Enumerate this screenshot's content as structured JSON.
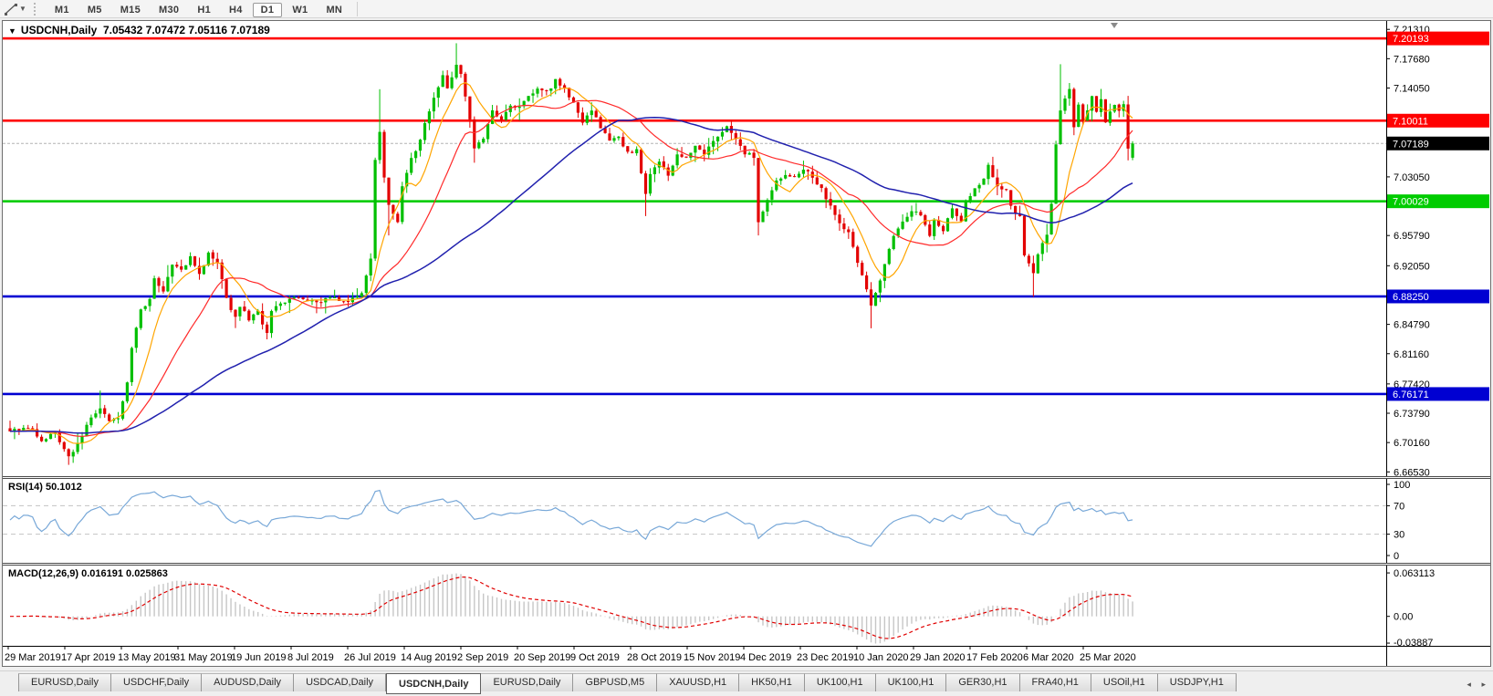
{
  "toolbar": {
    "timeframes": [
      "M1",
      "M5",
      "M15",
      "M30",
      "H1",
      "H4",
      "D1",
      "W1",
      "MN"
    ],
    "active_timeframe": "D1"
  },
  "chart_header": {
    "collapse_arrow": "▼",
    "title": "USDCNH,Daily",
    "ohlc_text": "7.05432 7.07472 7.05116 7.07189"
  },
  "chart_data": {
    "type": "candlestick",
    "symbol": "USDCNH",
    "timeframe": "Daily",
    "last_bar": {
      "open": 7.05432,
      "high": 7.07472,
      "low": 7.05116,
      "close": 7.07189
    },
    "ylim": [
      6.66,
      7.2235
    ],
    "price_axis_ticks": [
      "7.21310",
      "7.17680",
      "7.14050",
      "7.03050",
      "6.95790",
      "6.92050",
      "6.84790",
      "6.81160",
      "6.77420",
      "6.73790",
      "6.70160",
      "6.66530"
    ],
    "price_axis_tick_values": [
      7.2131,
      7.1768,
      7.1405,
      7.0305,
      6.9579,
      6.9205,
      6.8479,
      6.8116,
      6.7742,
      6.7379,
      6.7016,
      6.6653
    ],
    "hlines": [
      {
        "value": 7.20193,
        "label": "7.20193",
        "color": "#ff0000"
      },
      {
        "value": 7.10011,
        "label": "7.10011",
        "color": "#ff0000"
      },
      {
        "value": 7.00029,
        "label": "7.00029",
        "color": "#00cc00"
      },
      {
        "value": 6.8825,
        "label": "6.88250",
        "color": "#0000d2"
      },
      {
        "value": 6.76171,
        "label": "6.76171",
        "color": "#0000d2"
      }
    ],
    "current_price": {
      "value": 7.07189,
      "label": "7.07189"
    },
    "x_axis_dates": [
      "29 Mar 2019",
      "17 Apr 2019",
      "13 May 2019",
      "31 May 2019",
      "19 Jun 2019",
      "8 Jul 2019",
      "26 Jul 2019",
      "14 Aug 2019",
      "2 Sep 2019",
      "20 Sep 2019",
      "9 Oct 2019",
      "28 Oct 2019",
      "15 Nov 2019",
      "4 Dec 2019",
      "23 Dec 2019",
      "10 Jan 2020",
      "29 Jan 2020",
      "17 Feb 2020",
      "6 Mar 2020",
      "25 Mar 2020"
    ],
    "candle_count": 250,
    "close_anchors": [
      [
        0,
        6.715
      ],
      [
        4,
        6.722
      ],
      [
        7,
        6.705
      ],
      [
        10,
        6.715
      ],
      [
        13,
        6.683
      ],
      [
        15,
        6.7
      ],
      [
        18,
        6.735
      ],
      [
        20,
        6.745
      ],
      [
        22,
        6.728
      ],
      [
        24,
        6.733
      ],
      [
        26,
        6.775
      ],
      [
        27,
        6.82
      ],
      [
        29,
        6.865
      ],
      [
        31,
        6.88
      ],
      [
        32,
        6.905
      ],
      [
        34,
        6.89
      ],
      [
        36,
        6.92
      ],
      [
        38,
        6.915
      ],
      [
        40,
        6.93
      ],
      [
        42,
        6.91
      ],
      [
        44,
        6.935
      ],
      [
        46,
        6.925
      ],
      [
        48,
        6.88
      ],
      [
        50,
        6.855
      ],
      [
        51,
        6.87
      ],
      [
        53,
        6.855
      ],
      [
        55,
        6.865
      ],
      [
        57,
        6.835
      ],
      [
        58,
        6.865
      ],
      [
        60,
        6.875
      ],
      [
        63,
        6.88
      ],
      [
        67,
        6.875
      ],
      [
        71,
        6.88
      ],
      [
        75,
        6.878
      ],
      [
        78,
        6.885
      ],
      [
        80,
        6.93
      ],
      [
        81,
        7.05
      ],
      [
        82,
        7.085
      ],
      [
        83,
        7.03
      ],
      [
        84,
        6.995
      ],
      [
        86,
        6.975
      ],
      [
        87,
        7.02
      ],
      [
        89,
        7.055
      ],
      [
        90,
        7.06
      ],
      [
        92,
        7.095
      ],
      [
        94,
        7.13
      ],
      [
        96,
        7.155
      ],
      [
        97,
        7.14
      ],
      [
        99,
        7.17
      ],
      [
        100,
        7.16
      ],
      [
        102,
        7.1
      ],
      [
        103,
        7.065
      ],
      [
        105,
        7.08
      ],
      [
        107,
        7.115
      ],
      [
        109,
        7.1
      ],
      [
        111,
        7.12
      ],
      [
        113,
        7.115
      ],
      [
        115,
        7.13
      ],
      [
        117,
        7.14
      ],
      [
        119,
        7.135
      ],
      [
        121,
        7.15
      ],
      [
        123,
        7.14
      ],
      [
        125,
        7.12
      ],
      [
        127,
        7.1
      ],
      [
        129,
        7.115
      ],
      [
        131,
        7.09
      ],
      [
        133,
        7.075
      ],
      [
        135,
        7.08
      ],
      [
        137,
        7.06
      ],
      [
        139,
        7.065
      ],
      [
        141,
        7.01
      ],
      [
        142,
        7.035
      ],
      [
        144,
        7.05
      ],
      [
        146,
        7.03
      ],
      [
        148,
        7.06
      ],
      [
        150,
        7.055
      ],
      [
        152,
        7.07
      ],
      [
        154,
        7.06
      ],
      [
        156,
        7.075
      ],
      [
        158,
        7.085
      ],
      [
        159,
        7.095
      ],
      [
        161,
        7.075
      ],
      [
        163,
        7.06
      ],
      [
        165,
        7.055
      ],
      [
        166,
        6.975
      ],
      [
        168,
        7.0
      ],
      [
        170,
        7.025
      ],
      [
        172,
        7.035
      ],
      [
        174,
        7.03
      ],
      [
        176,
        7.04
      ],
      [
        178,
        7.03
      ],
      [
        180,
        7.015
      ],
      [
        182,
        6.995
      ],
      [
        184,
        6.975
      ],
      [
        186,
        6.96
      ],
      [
        188,
        6.925
      ],
      [
        190,
        6.89
      ],
      [
        191,
        6.87
      ],
      [
        193,
        6.9
      ],
      [
        194,
        6.925
      ],
      [
        196,
        6.955
      ],
      [
        198,
        6.975
      ],
      [
        200,
        6.99
      ],
      [
        202,
        6.985
      ],
      [
        204,
        6.96
      ],
      [
        205,
        6.975
      ],
      [
        207,
        6.965
      ],
      [
        209,
        6.99
      ],
      [
        211,
        6.975
      ],
      [
        212,
        7.0
      ],
      [
        214,
        7.015
      ],
      [
        216,
        7.03
      ],
      [
        217,
        7.045
      ],
      [
        219,
        7.02
      ],
      [
        221,
        7.015
      ],
      [
        222,
        6.995
      ],
      [
        224,
        6.98
      ],
      [
        225,
        6.935
      ],
      [
        227,
        6.91
      ],
      [
        228,
        6.935
      ],
      [
        230,
        6.96
      ],
      [
        231,
        6.995
      ],
      [
        232,
        7.07
      ],
      [
        233,
        7.115
      ],
      [
        235,
        7.14
      ],
      [
        236,
        7.09
      ],
      [
        237,
        7.12
      ],
      [
        238,
        7.1
      ],
      [
        240,
        7.13
      ],
      [
        241,
        7.11
      ],
      [
        242,
        7.125
      ],
      [
        243,
        7.1
      ],
      [
        245,
        7.12
      ],
      [
        246,
        7.11
      ],
      [
        247,
        7.12
      ],
      [
        248,
        7.065
      ],
      [
        249,
        7.07189
      ]
    ],
    "wick_overrides": [
      [
        13,
        "l",
        6.674
      ],
      [
        20,
        "h",
        6.766
      ],
      [
        82,
        "h",
        7.139
      ],
      [
        84,
        "l",
        6.958
      ],
      [
        99,
        "h",
        7.196
      ],
      [
        103,
        "l",
        7.048
      ],
      [
        141,
        "l",
        6.982
      ],
      [
        166,
        "l",
        6.958
      ],
      [
        191,
        "l",
        6.843
      ],
      [
        227,
        "l",
        6.882
      ],
      [
        233,
        "h",
        7.17
      ],
      [
        248,
        "l",
        7.051
      ]
    ],
    "moving_averages": [
      {
        "name": "fast",
        "period": 8,
        "color": "#ffa500"
      },
      {
        "name": "mid",
        "period": 21,
        "color": "#ff2a2a"
      },
      {
        "name": "slow",
        "period": 55,
        "color": "#2121ae"
      }
    ],
    "indicators": {
      "rsi": {
        "label": "RSI(14) 50.1012",
        "period": 14,
        "current": 50.1012,
        "range": [
          0,
          100
        ],
        "dashed_levels": [
          70,
          30
        ],
        "axis_labels": [
          "100",
          "70",
          "30",
          "0"
        ],
        "axis_values": [
          100,
          70,
          30,
          0
        ]
      },
      "macd": {
        "label": "MACD(12,26,9) 0.016191 0.025863",
        "fast": 12,
        "slow": 26,
        "signal": 9,
        "current_macd": 0.016191,
        "current_signal": 0.025863,
        "range": [
          -0.0428,
          0.0738
        ],
        "axis_labels": [
          "0.063113",
          "0.00",
          "-0.03887"
        ],
        "axis_values": [
          0.063113,
          0,
          -0.03887
        ]
      }
    },
    "colors": {
      "up": "#00bf00",
      "down": "#e30000",
      "rsi_line": "#78a8d8",
      "level_dash": "#c2c2c2",
      "macd_histogram": "#c6c6c6",
      "macd_signal": "#e00000",
      "current_price_line": "#b4b4b4",
      "current_price_box": "#000000",
      "axis_text": "#000000"
    }
  },
  "tabs": {
    "items": [
      {
        "label": "EURUSD,Daily",
        "active": false
      },
      {
        "label": "USDCHF,Daily",
        "active": false
      },
      {
        "label": "AUDUSD,Daily",
        "active": false
      },
      {
        "label": "USDCAD,Daily",
        "active": false
      },
      {
        "label": "USDCNH,Daily",
        "active": true
      },
      {
        "label": "EURUSD,Daily",
        "active": false
      },
      {
        "label": "GBPUSD,M5",
        "active": false
      },
      {
        "label": "XAUUSD,H1",
        "active": false
      },
      {
        "label": "HK50,H1",
        "active": false
      },
      {
        "label": "UK100,H1",
        "active": false
      },
      {
        "label": "UK100,H1",
        "active": false
      },
      {
        "label": "GER30,H1",
        "active": false
      },
      {
        "label": "FRA40,H1",
        "active": false
      },
      {
        "label": "USOil,H1",
        "active": false
      },
      {
        "label": "USDJPY,H1",
        "active": false
      }
    ],
    "scroll_left_arrow": "◂",
    "scroll_right_arrow": "▸"
  }
}
